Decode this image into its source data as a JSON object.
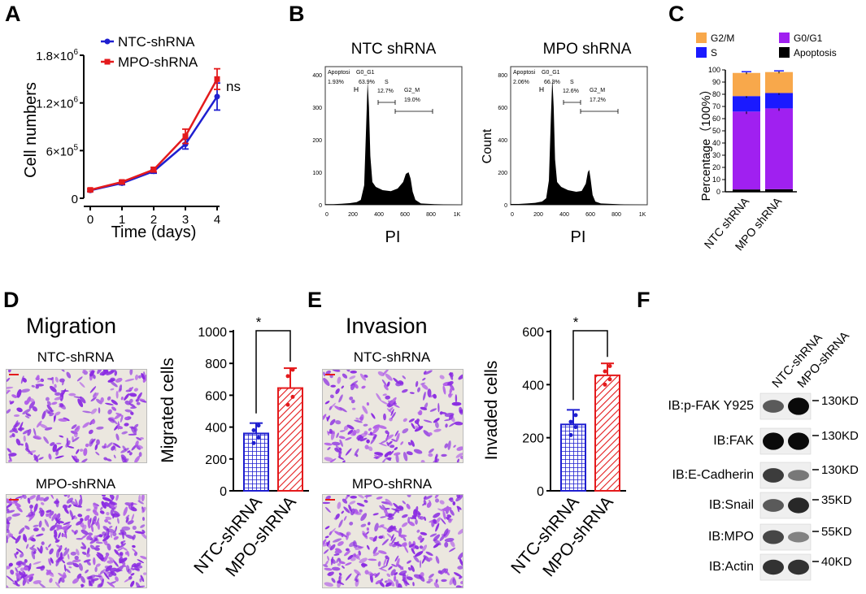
{
  "panel_letters": {
    "a": "A",
    "b": "B",
    "c": "C",
    "d": "D",
    "e": "E",
    "f": "F"
  },
  "colors": {
    "blue": "#1f1fd0",
    "red": "#e41a1c",
    "orange": "#f8a84b",
    "purple": "#a020f0",
    "sblue": "#1a1aff",
    "black": "#000000",
    "stain": "#8a2be2"
  },
  "panelA": {
    "legend": [
      "NTC-shRNA",
      "MPO-shRNA"
    ],
    "ns": "ns",
    "chart_data": {
      "type": "line",
      "title": "",
      "xlabel": "Time (days)",
      "ylabel": "Cell numbers",
      "x": [
        0,
        1,
        2,
        3,
        4
      ],
      "x_ticks": [
        "0",
        "1",
        "2",
        "3",
        "4"
      ],
      "y_ticks": [
        {
          "v": 0,
          "base": "0",
          "exp": ""
        },
        {
          "v": 600000,
          "base": "6×10",
          "exp": "5"
        },
        {
          "v": 1200000,
          "base": "1.2×10",
          "exp": "6"
        },
        {
          "v": 1800000,
          "base": "1.8×10",
          "exp": "6"
        }
      ],
      "ylim": [
        0,
        1800000
      ],
      "series": [
        {
          "name": "NTC-shRNA",
          "values": [
            100000,
            190000,
            340000,
            680000,
            1280000
          ],
          "errors": [
            15000,
            20000,
            25000,
            60000,
            170000
          ]
        },
        {
          "name": "MPO-shRNA",
          "values": [
            105000,
            205000,
            360000,
            780000,
            1500000
          ],
          "errors": [
            15000,
            20000,
            30000,
            90000,
            130000
          ]
        }
      ]
    }
  },
  "panelB": {
    "left": {
      "title": "NTC shRNA",
      "xlabel": "PI",
      "ylabel": "",
      "y_ticks": [
        "0",
        "100",
        "200",
        "300",
        "400"
      ],
      "x_ticks": [
        "0",
        "200",
        "400",
        "600",
        "800",
        "1K"
      ],
      "gate_labels": [
        "Apoptosi",
        "G0_G1",
        "S",
        "G2_M"
      ],
      "gate_values": [
        "1.93%",
        "63.9%",
        "12.7%",
        "19.0%"
      ],
      "chart_data": {
        "type": "area",
        "x": [
          0,
          60,
          120,
          180,
          230,
          260,
          285,
          300,
          310,
          320,
          330,
          345,
          370,
          420,
          480,
          530,
          570,
          590,
          610,
          625,
          640,
          660,
          700,
          800,
          900,
          1000
        ],
        "values": [
          2,
          2,
          3,
          5,
          8,
          15,
          60,
          250,
          380,
          300,
          150,
          70,
          55,
          45,
          42,
          50,
          70,
          95,
          100,
          80,
          40,
          15,
          4,
          2,
          1,
          0
        ],
        "ylim": [
          0,
          420
        ],
        "xlim": [
          0,
          1000
        ]
      }
    },
    "right": {
      "title": "MPO shRNA",
      "xlabel": "PI",
      "ylabel": "Count",
      "y_ticks": [
        "0",
        "200",
        "400",
        "600",
        "800"
      ],
      "x_ticks": [
        "0",
        "200",
        "400",
        "600",
        "800",
        "1K"
      ],
      "gate_labels": [
        "Apoptosi",
        "G0_G1",
        "S",
        "G2_M"
      ],
      "gate_values": [
        "2.06%",
        "66.3%",
        "12.6%",
        "17.2%"
      ],
      "chart_data": {
        "type": "area",
        "x": [
          0,
          60,
          120,
          180,
          230,
          260,
          280,
          295,
          305,
          315,
          325,
          340,
          370,
          420,
          480,
          520,
          550,
          565,
          575,
          585,
          600,
          620,
          660,
          800,
          900,
          1000
        ],
        "values": [
          5,
          5,
          8,
          12,
          20,
          40,
          150,
          550,
          780,
          600,
          280,
          140,
          110,
          90,
          80,
          85,
          130,
          200,
          215,
          160,
          60,
          20,
          8,
          3,
          1,
          0
        ],
        "ylim": [
          0,
          840
        ],
        "xlim": [
          0,
          1000
        ]
      }
    }
  },
  "panelC": {
    "legend": [
      "G2/M",
      "G0/G1",
      "S",
      "Apoptosis"
    ],
    "chart_data": {
      "type": "bar",
      "ylabel": "Percentage（100%）",
      "categories": [
        "NTC shRNA",
        "MPO shRNA"
      ],
      "y_ticks": [
        "0",
        "10",
        "20",
        "30",
        "40",
        "50",
        "60",
        "70",
        "80",
        "90",
        "100"
      ],
      "ylim": [
        0,
        100
      ],
      "series": [
        {
          "name": "Apoptosis",
          "values": [
            1.9,
            2.1
          ]
        },
        {
          "name": "G0/G1",
          "values": [
            63.9,
            66.3
          ],
          "errors": [
            2,
            2
          ]
        },
        {
          "name": "S",
          "values": [
            12.7,
            12.6
          ],
          "errors": [
            1.5,
            1.5
          ]
        },
        {
          "name": "G2/M",
          "values": [
            19.0,
            17.2
          ],
          "errors": [
            1,
            1
          ]
        }
      ]
    }
  },
  "panelD": {
    "title": "Migration",
    "img_labels": [
      "NTC-shRNA",
      "MPO-shRNA"
    ],
    "star": "*",
    "chart_data": {
      "type": "bar",
      "ylabel": "Migrated cells",
      "categories": [
        "NTC-shRNA",
        "MPO-shRNA"
      ],
      "values": [
        360,
        645
      ],
      "errors": [
        65,
        125
      ],
      "y_ticks": [
        "0",
        "200",
        "400",
        "600",
        "800",
        "1000"
      ],
      "ylim": [
        0,
        1000
      ],
      "points": [
        [
          300,
          335,
          380,
          410
        ],
        [
          540,
          590,
          720,
          760
        ]
      ]
    }
  },
  "panelE": {
    "title": "Invasion",
    "img_labels": [
      "NTC-shRNA",
      "MPO-shRNA"
    ],
    "star": "*",
    "chart_data": {
      "type": "bar",
      "ylabel": "Invaded cells",
      "categories": [
        "NTC-shRNA",
        "MPO-shRNA"
      ],
      "values": [
        250,
        435
      ],
      "errors": [
        55,
        45
      ],
      "y_ticks": [
        "0",
        "200",
        "400",
        "600"
      ],
      "ylim": [
        0,
        600
      ],
      "points": [
        [
          210,
          240,
          260,
          285
        ],
        [
          400,
          420,
          450,
          470
        ]
      ]
    }
  },
  "panelF": {
    "lanes": [
      "NTC-shRNA",
      "MPO-shRNA"
    ],
    "rows": [
      {
        "label": "IB:p-FAK Y925",
        "kd": "130KD",
        "left": 0.55,
        "right": 0.95
      },
      {
        "label": "IB:FAK",
        "kd": "130KD",
        "left": 0.95,
        "right": 0.95
      },
      {
        "label": "IB:E-Cadherin",
        "kd": "130KD",
        "left": 0.7,
        "right": 0.4
      },
      {
        "label": "IB:Snail",
        "kd": "35KD",
        "left": 0.55,
        "right": 0.8
      },
      {
        "label": "IB:MPO",
        "kd": "55KD",
        "left": 0.65,
        "right": 0.35
      },
      {
        "label": "IB:Actin",
        "kd": "40KD",
        "left": 0.75,
        "right": 0.75
      }
    ]
  }
}
